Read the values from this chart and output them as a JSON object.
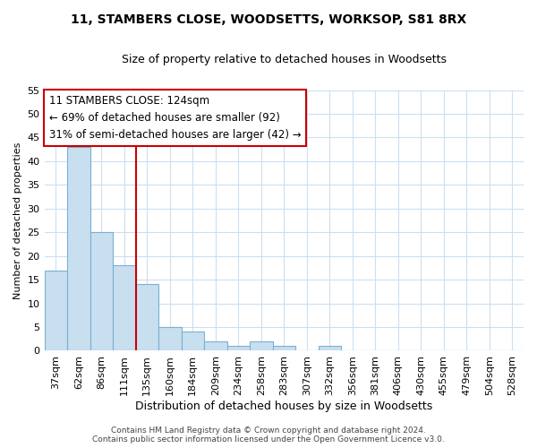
{
  "title_line1": "11, STAMBERS CLOSE, WOODSETTS, WORKSOP, S81 8RX",
  "title_line2": "Size of property relative to detached houses in Woodsetts",
  "xlabel": "Distribution of detached houses by size in Woodsetts",
  "ylabel": "Number of detached properties",
  "categories": [
    "37sqm",
    "62sqm",
    "86sqm",
    "111sqm",
    "135sqm",
    "160sqm",
    "184sqm",
    "209sqm",
    "234sqm",
    "258sqm",
    "283sqm",
    "307sqm",
    "332sqm",
    "356sqm",
    "381sqm",
    "406sqm",
    "430sqm",
    "455sqm",
    "479sqm",
    "504sqm",
    "528sqm"
  ],
  "values": [
    17,
    43,
    25,
    18,
    14,
    5,
    4,
    2,
    1,
    2,
    1,
    0,
    1,
    0,
    0,
    0,
    0,
    0,
    0,
    0,
    0
  ],
  "bar_color": "#c8dff0",
  "bar_edge_color": "#7ab0d4",
  "reference_line_x": 3.5,
  "reference_line_color": "#cc0000",
  "annotation_text": "11 STAMBERS CLOSE: 124sqm\n← 69% of detached houses are smaller (92)\n31% of semi-detached houses are larger (42) →",
  "annotation_box_facecolor": "#ffffff",
  "annotation_box_edgecolor": "#cc0000",
  "ylim": [
    0,
    55
  ],
  "yticks": [
    0,
    5,
    10,
    15,
    20,
    25,
    30,
    35,
    40,
    45,
    50,
    55
  ],
  "footer_line1": "Contains HM Land Registry data © Crown copyright and database right 2024.",
  "footer_line2": "Contains public sector information licensed under the Open Government Licence v3.0.",
  "bg_color": "#ffffff",
  "plot_bg_color": "#ffffff",
  "grid_color": "#ccdff0",
  "title1_fontsize": 10,
  "title2_fontsize": 9,
  "xlabel_fontsize": 9,
  "ylabel_fontsize": 8,
  "tick_fontsize": 8,
  "annotation_fontsize": 8.5,
  "footer_fontsize": 6.5
}
